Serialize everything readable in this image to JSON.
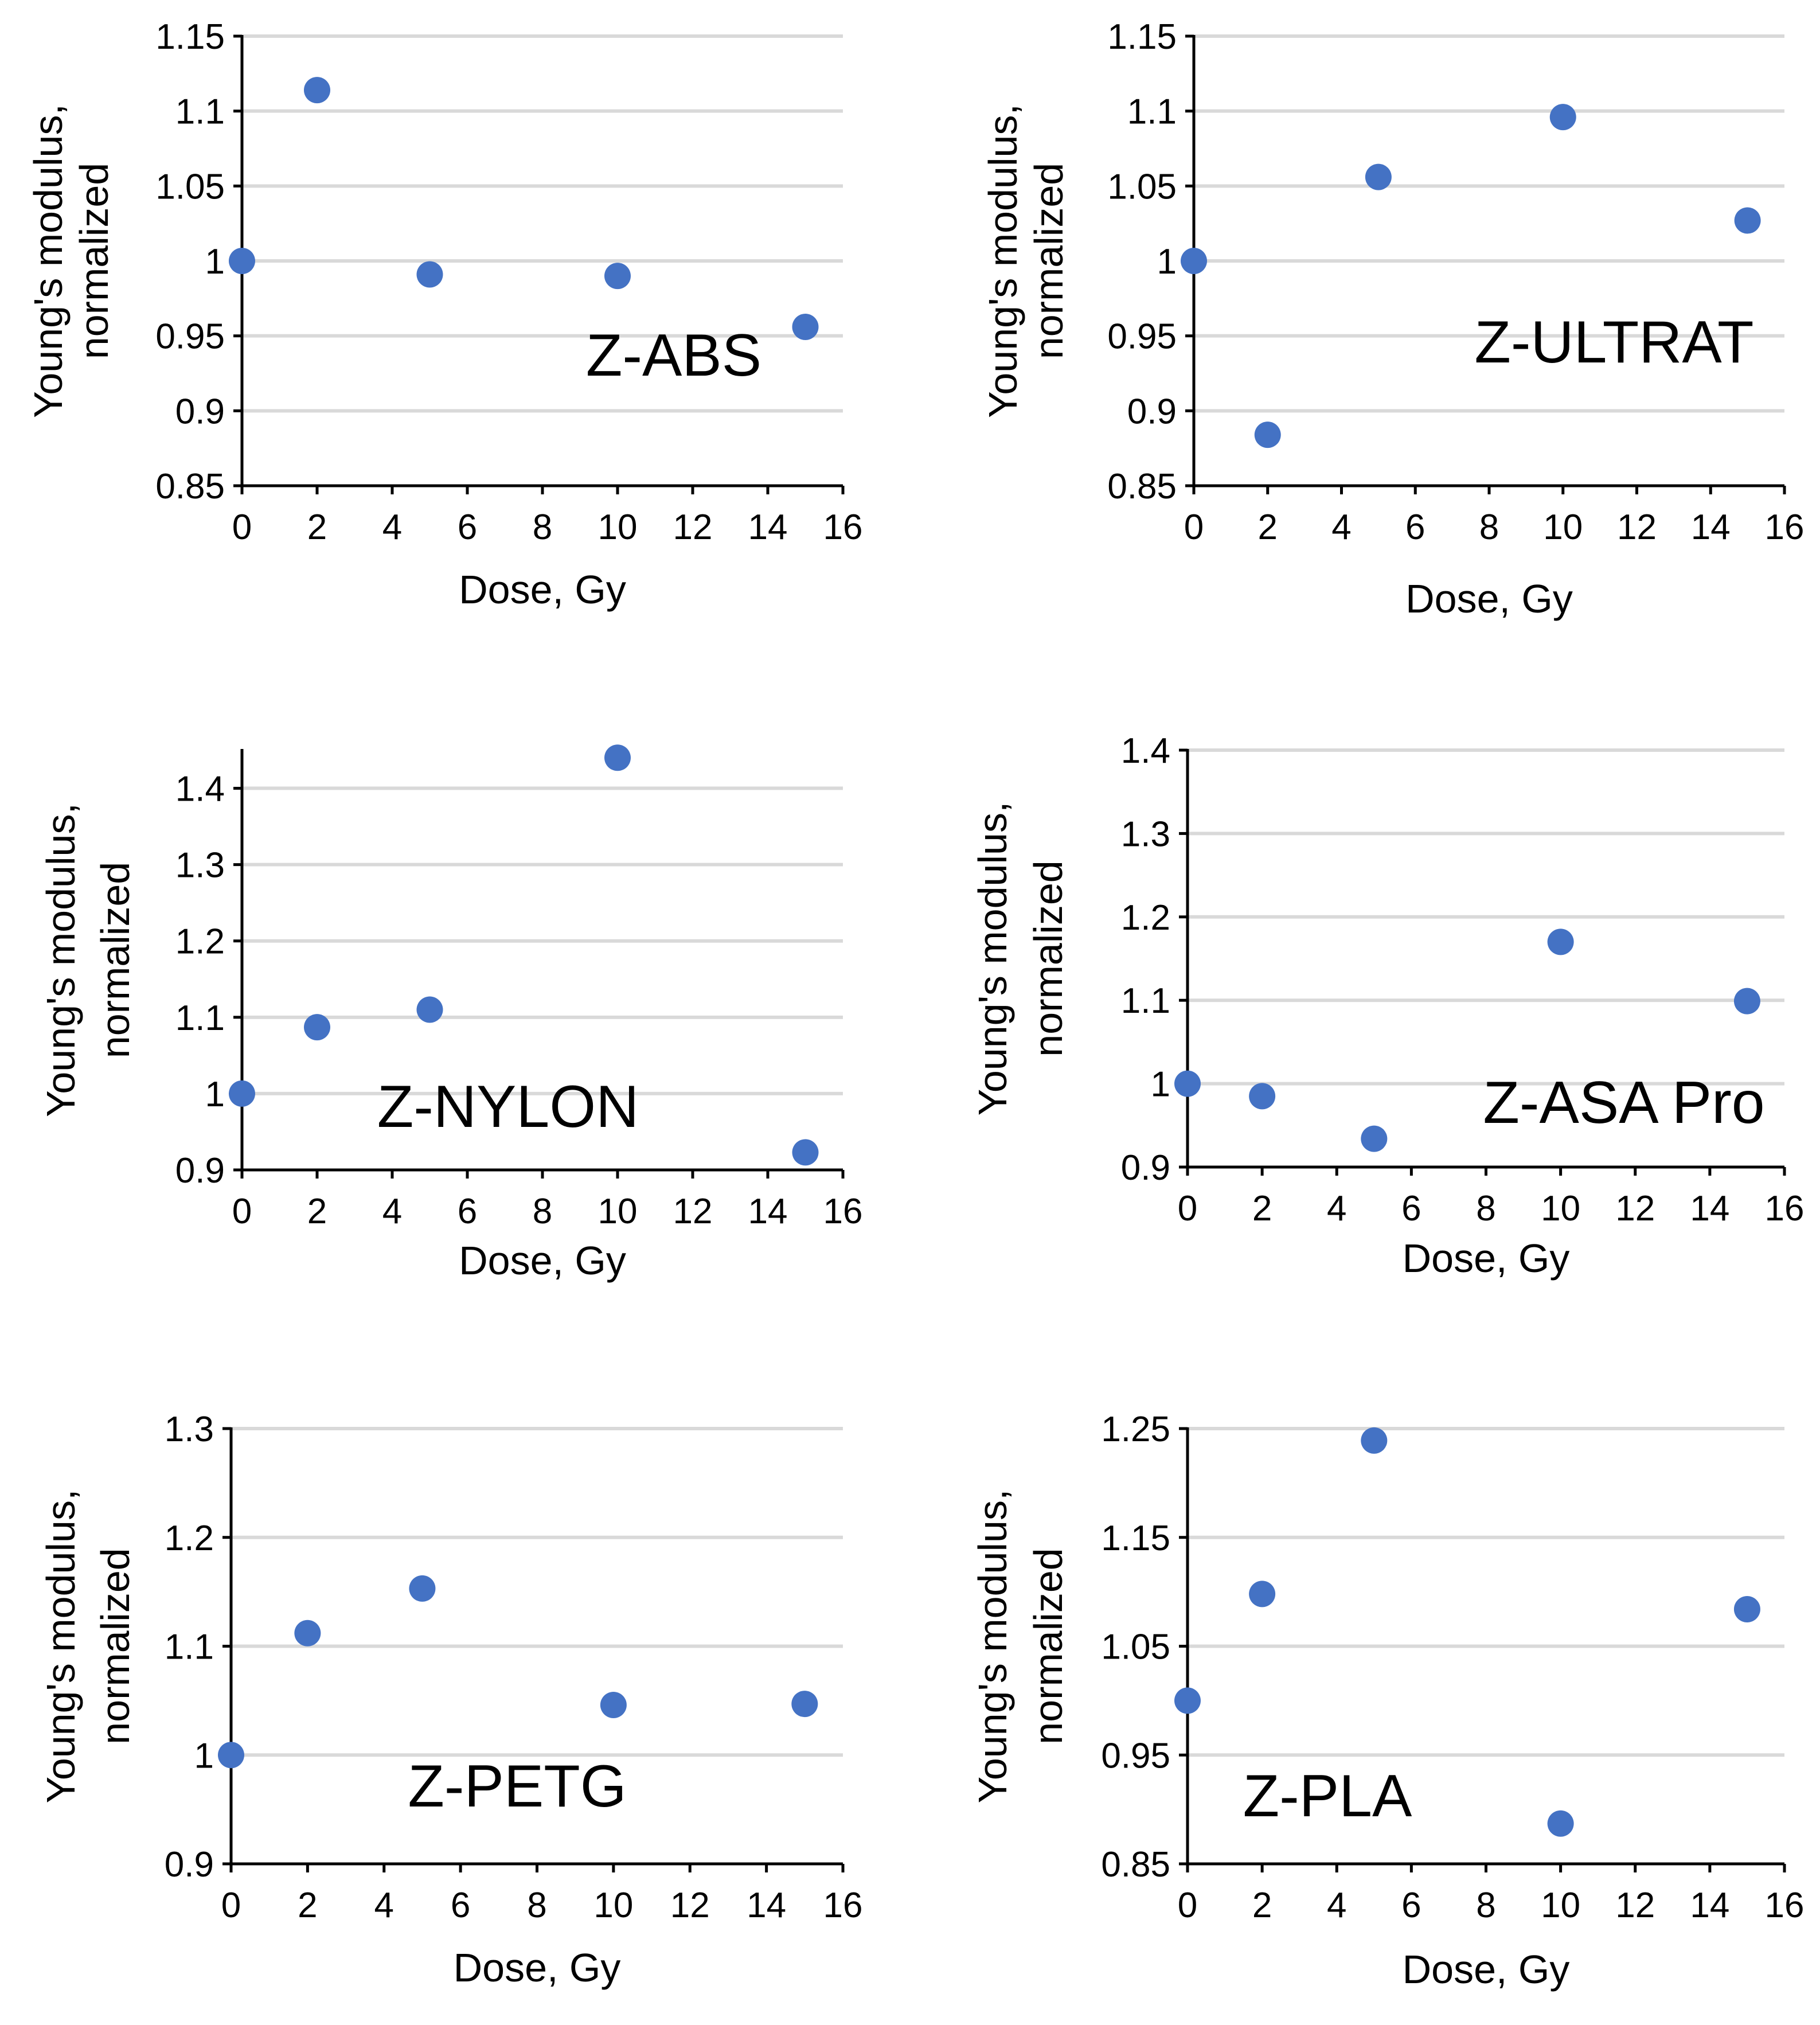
{
  "chart_data": [
    {
      "type": "scatter",
      "label": "Z-ABS",
      "xlabel": "Dose, Gy",
      "ylabel": [
        "Young's modulus,",
        "normalized"
      ],
      "xlim": [
        0,
        16
      ],
      "ylim": [
        0.85,
        1.15
      ],
      "x_ticks": [
        0,
        2,
        4,
        6,
        8,
        10,
        12,
        14,
        16
      ],
      "y_ticks": [
        0.85,
        0.9,
        0.95,
        1,
        1.05,
        1.1,
        1.15
      ],
      "x_tick_labels": [
        "0",
        "2",
        "4",
        "6",
        "8",
        "10",
        "12",
        "14",
        "16"
      ],
      "y_tick_labels": [
        "0.85",
        "0.9",
        "0.95",
        "1",
        "1.05",
        "1.1",
        "1.15"
      ],
      "series": [
        {
          "name": "Z-ABS",
          "x": [
            0,
            2,
            5,
            10,
            15
          ],
          "y": [
            1.0,
            1.114,
            0.991,
            0.99,
            0.956
          ]
        }
      ]
    },
    {
      "type": "scatter",
      "label": "Z-ULTRAT",
      "xlabel": "Dose, Gy",
      "ylabel": [
        "Young's modulus,",
        "normalized"
      ],
      "xlim": [
        0,
        16
      ],
      "ylim": [
        0.85,
        1.15
      ],
      "x_ticks": [
        0,
        2,
        4,
        6,
        8,
        10,
        12,
        14,
        16
      ],
      "y_ticks": [
        0.85,
        0.9,
        0.95,
        1,
        1.05,
        1.1,
        1.15
      ],
      "x_tick_labels": [
        "0",
        "2",
        "4",
        "6",
        "8",
        "10",
        "12",
        "14",
        "16"
      ],
      "y_tick_labels": [
        "0.85",
        "0.9",
        "0.95",
        "1",
        "1.05",
        "1.1",
        "1.15"
      ],
      "series": [
        {
          "name": "Z-ULTRAT",
          "x": [
            0,
            2,
            5,
            10,
            15
          ],
          "y": [
            1.0,
            0.884,
            1.056,
            1.096,
            1.027
          ]
        }
      ]
    },
    {
      "type": "scatter",
      "label": "Z-NYLON",
      "xlabel": "Dose, Gy",
      "ylabel": [
        "Young's modulus,",
        "normalized"
      ],
      "xlim": [
        0,
        16
      ],
      "ylim": [
        0.9,
        1.45
      ],
      "x_ticks": [
        0,
        2,
        4,
        6,
        8,
        10,
        12,
        14,
        16
      ],
      "y_ticks": [
        0.9,
        1,
        1.1,
        1.2,
        1.3,
        1.4
      ],
      "x_tick_labels": [
        "0",
        "2",
        "4",
        "6",
        "8",
        "10",
        "12",
        "14",
        "16"
      ],
      "y_tick_labels": [
        "0.9",
        "1",
        "1.1",
        "1.2",
        "1.3",
        "1.4"
      ],
      "series": [
        {
          "name": "Z-NYLON",
          "x": [
            0,
            2,
            5,
            10,
            15
          ],
          "y": [
            1.0,
            1.087,
            1.11,
            1.44,
            0.923
          ]
        }
      ]
    },
    {
      "type": "scatter",
      "label": "Z-ASA Pro",
      "xlabel": "Dose, Gy",
      "ylabel": [
        "Young's modulus,",
        "normalized"
      ],
      "xlim": [
        0,
        16
      ],
      "ylim": [
        0.9,
        1.4
      ],
      "x_ticks": [
        0,
        2,
        4,
        6,
        8,
        10,
        12,
        14,
        16
      ],
      "y_ticks": [
        0.9,
        1,
        1.1,
        1.2,
        1.3,
        1.4
      ],
      "x_tick_labels": [
        "0",
        "2",
        "4",
        "6",
        "8",
        "10",
        "12",
        "14",
        "16"
      ],
      "y_tick_labels": [
        "0.9",
        "1",
        "1.1",
        "1.2",
        "1.3",
        "1.4"
      ],
      "series": [
        {
          "name": "Z-ASA Pro",
          "x": [
            0,
            2,
            5,
            10,
            15
          ],
          "y": [
            1.0,
            0.985,
            0.934,
            1.17,
            1.099
          ]
        }
      ]
    },
    {
      "type": "scatter",
      "label": "Z-PETG",
      "xlabel": "Dose, Gy",
      "ylabel": [
        "Young's modulus,",
        "normalized"
      ],
      "xlim": [
        0,
        16
      ],
      "ylim": [
        0.9,
        1.3
      ],
      "x_ticks": [
        0,
        2,
        4,
        6,
        8,
        10,
        12,
        14,
        16
      ],
      "y_ticks": [
        0.9,
        1,
        1.1,
        1.2,
        1.3
      ],
      "x_tick_labels": [
        "0",
        "2",
        "4",
        "6",
        "8",
        "10",
        "12",
        "14",
        "16"
      ],
      "y_tick_labels": [
        "0.9",
        "1",
        "1.1",
        "1.2",
        "1.3"
      ],
      "series": [
        {
          "name": "Z-PETG",
          "x": [
            0,
            2,
            5,
            10,
            15
          ],
          "y": [
            1.0,
            1.112,
            1.153,
            1.046,
            1.047
          ]
        }
      ]
    },
    {
      "type": "scatter",
      "label": "Z-PLA",
      "xlabel": "Dose, Gy",
      "ylabel": [
        "Young's modulus,",
        "normalized"
      ],
      "xlim": [
        0,
        16
      ],
      "ylim": [
        0.85,
        1.25
      ],
      "x_ticks": [
        0,
        2,
        4,
        6,
        8,
        10,
        12,
        14,
        16
      ],
      "y_ticks": [
        0.85,
        0.95,
        1.05,
        1.15,
        1.25
      ],
      "x_tick_labels": [
        "0",
        "2",
        "4",
        "6",
        "8",
        "10",
        "12",
        "14",
        "16"
      ],
      "y_tick_labels": [
        "0.85",
        "0.95",
        "1.05",
        "1.15",
        "1.25"
      ],
      "series": [
        {
          "name": "Z-PLA",
          "x": [
            0,
            2,
            5,
            10,
            15
          ],
          "y": [
            1.0,
            1.098,
            1.239,
            0.887,
            1.084
          ]
        }
      ]
    }
  ],
  "colors": {
    "marker": "#4472C4",
    "gridline": "#D9D9D9",
    "axis": "#000000"
  }
}
